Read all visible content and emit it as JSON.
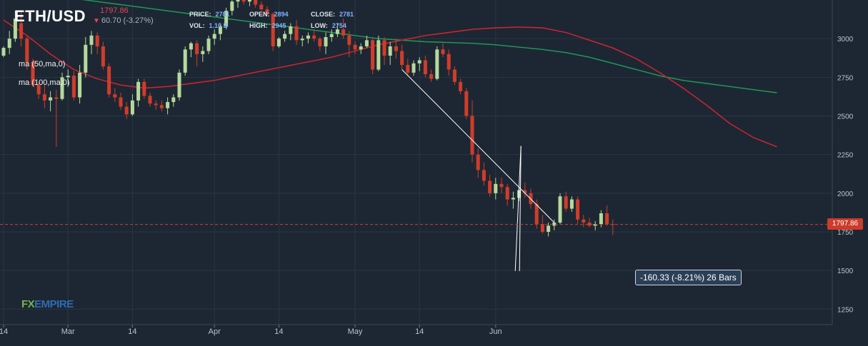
{
  "header": {
    "symbol": "ETH/USD",
    "price": "1797.86",
    "change": "60.70 (-3.27%)",
    "stats": [
      {
        "key": "PRICE:",
        "value": "2781"
      },
      {
        "key": "OPEN:",
        "value": "2894"
      },
      {
        "key": "CLOSE:",
        "value": "2781"
      },
      {
        "key": "VOL:",
        "value": "1.10 B"
      },
      {
        "key": "HIGH:",
        "value": "2945"
      },
      {
        "key": "LOW:",
        "value": "2754"
      }
    ]
  },
  "indicators": [
    "ma (50,ma,0)",
    "ma (100,ma,0)"
  ],
  "logo": {
    "part1": "FX",
    "part2": "EMPIRE"
  },
  "measure": {
    "label": "-160.33 (-8.21%) 26 Bars",
    "from_index": 68,
    "to_index": 94
  },
  "price_tag": "1797.86",
  "colors": {
    "background": "#1d2733",
    "up": "#b5d99c",
    "down": "#d13c2a",
    "ma50": "#d9242f",
    "ma100": "#1e9e5a",
    "current_price_line": "#c8412f",
    "grid": "#2a3644"
  },
  "chart_data": {
    "type": "candlestick",
    "ylim": [
      1150,
      3250
    ],
    "y_ticks": [
      1250,
      1500,
      1750,
      2000,
      2250,
      2500,
      2750,
      3000
    ],
    "x_ticks": [
      {
        "label": "14",
        "index": 0
      },
      {
        "label": "Mar",
        "index": 11
      },
      {
        "label": "14",
        "index": 22
      },
      {
        "label": "Apr",
        "index": 36
      },
      {
        "label": "14",
        "index": 47
      },
      {
        "label": "May",
        "index": 60
      },
      {
        "label": "14",
        "index": 71
      },
      {
        "label": "Jun",
        "index": 84
      }
    ],
    "current_price": 1797.86,
    "candles": [
      [
        2890,
        2950,
        2880,
        2940
      ],
      [
        2940,
        3050,
        2900,
        3000
      ],
      [
        3000,
        3180,
        2980,
        3130
      ],
      [
        3100,
        3180,
        2950,
        3000
      ],
      [
        3000,
        3020,
        2800,
        2850
      ],
      [
        2850,
        2870,
        2690,
        2700
      ],
      [
        2700,
        2720,
        2610,
        2640
      ],
      [
        2640,
        2700,
        2550,
        2600
      ],
      [
        2600,
        2660,
        2530,
        2620
      ],
      [
        2620,
        2670,
        2300,
        2610
      ],
      [
        2610,
        2780,
        2600,
        2750
      ],
      [
        2750,
        2800,
        2700,
        2760
      ],
      [
        2760,
        2790,
        2600,
        2620
      ],
      [
        2620,
        2830,
        2580,
        2780
      ],
      [
        2780,
        3010,
        2750,
        2960
      ],
      [
        2960,
        3050,
        2900,
        3020
      ],
      [
        3020,
        3040,
        2900,
        2950
      ],
      [
        2950,
        2980,
        2800,
        2820
      ],
      [
        2820,
        2840,
        2620,
        2640
      ],
      [
        2640,
        2680,
        2590,
        2620
      ],
      [
        2620,
        2650,
        2540,
        2560
      ],
      [
        2560,
        2590,
        2480,
        2510
      ],
      [
        2510,
        2640,
        2500,
        2600
      ],
      [
        2600,
        2740,
        2560,
        2720
      ],
      [
        2720,
        2740,
        2610,
        2630
      ],
      [
        2630,
        2650,
        2560,
        2580
      ],
      [
        2580,
        2600,
        2540,
        2570
      ],
      [
        2570,
        2600,
        2530,
        2550
      ],
      [
        2550,
        2620,
        2510,
        2590
      ],
      [
        2590,
        2640,
        2560,
        2620
      ],
      [
        2620,
        2800,
        2600,
        2780
      ],
      [
        2780,
        2950,
        2760,
        2930
      ],
      [
        2930,
        2980,
        2880,
        2970
      ],
      [
        2970,
        2990,
        2820,
        2900
      ],
      [
        2900,
        2950,
        2850,
        2920
      ],
      [
        2920,
        3020,
        2900,
        3000
      ],
      [
        3000,
        3060,
        2960,
        3030
      ],
      [
        3030,
        3100,
        2990,
        3080
      ],
      [
        3080,
        3200,
        3060,
        3180
      ],
      [
        3180,
        3260,
        3150,
        3240
      ],
      [
        3240,
        3280,
        3200,
        3260
      ],
      [
        3260,
        3270,
        3220,
        3240
      ],
      [
        3240,
        3280,
        3210,
        3250
      ],
      [
        3250,
        3270,
        3200,
        3220
      ],
      [
        3220,
        3240,
        3180,
        3190
      ],
      [
        3190,
        3210,
        3150,
        3160
      ],
      [
        3160,
        3170,
        2920,
        2950
      ],
      [
        2950,
        3010,
        2940,
        3000
      ],
      [
        3000,
        3050,
        2980,
        3030
      ],
      [
        3030,
        3100,
        2990,
        3080
      ],
      [
        3080,
        3120,
        2960,
        2990
      ],
      [
        2990,
        3020,
        2950,
        3000
      ],
      [
        3000,
        3040,
        2970,
        3020
      ],
      [
        3020,
        3060,
        2980,
        3000
      ],
      [
        3000,
        3010,
        2920,
        2950
      ],
      [
        2950,
        3040,
        2900,
        3010
      ],
      [
        3010,
        3060,
        2980,
        3030
      ],
      [
        3030,
        3100,
        3010,
        3060
      ],
      [
        3060,
        3130,
        3000,
        3020
      ],
      [
        3020,
        3050,
        2880,
        2960
      ],
      [
        2960,
        2980,
        2900,
        2930
      ],
      [
        2930,
        2970,
        2900,
        2950
      ],
      [
        2950,
        3020,
        2940,
        2990
      ],
      [
        2990,
        3000,
        2770,
        2800
      ],
      [
        2800,
        3020,
        2790,
        2990
      ],
      [
        2990,
        3010,
        2830,
        2890
      ],
      [
        2890,
        2980,
        2830,
        2950
      ],
      [
        2950,
        3000,
        2870,
        2920
      ],
      [
        2920,
        2960,
        2800,
        2830
      ],
      [
        2830,
        2870,
        2760,
        2780
      ],
      [
        2780,
        2860,
        2760,
        2840
      ],
      [
        2840,
        2880,
        2790,
        2860
      ],
      [
        2860,
        2890,
        2750,
        2770
      ],
      [
        2770,
        2800,
        2720,
        2740
      ],
      [
        2740,
        2950,
        2730,
        2930
      ],
      [
        2930,
        2970,
        2880,
        2900
      ],
      [
        2900,
        2930,
        2760,
        2800
      ],
      [
        2800,
        2820,
        2700,
        2720
      ],
      [
        2720,
        2740,
        2640,
        2660
      ],
      [
        2660,
        2680,
        2480,
        2500
      ],
      [
        2500,
        2600,
        2200,
        2250
      ],
      [
        2250,
        2290,
        2100,
        2150
      ],
      [
        2150,
        2200,
        2050,
        2080
      ],
      [
        2080,
        2120,
        1980,
        2000
      ],
      [
        2000,
        2100,
        1960,
        2060
      ],
      [
        2060,
        2100,
        2000,
        2040
      ],
      [
        2040,
        2060,
        1920,
        1960
      ],
      [
        1960,
        2010,
        1900,
        1970
      ],
      [
        1970,
        2040,
        1950,
        2020
      ],
      [
        2020,
        2070,
        1970,
        2000
      ],
      [
        2000,
        2030,
        1900,
        1930
      ],
      [
        1930,
        1960,
        1770,
        1800
      ],
      [
        1800,
        1860,
        1740,
        1750
      ],
      [
        1750,
        1810,
        1720,
        1790
      ],
      [
        1790,
        1830,
        1760,
        1810
      ],
      [
        1810,
        2000,
        1800,
        1980
      ],
      [
        1980,
        2010,
        1880,
        1900
      ],
      [
        1900,
        1980,
        1880,
        1960
      ],
      [
        1960,
        1980,
        1800,
        1830
      ],
      [
        1830,
        1860,
        1780,
        1810
      ],
      [
        1810,
        1840,
        1780,
        1790
      ],
      [
        1790,
        1820,
        1760,
        1800
      ],
      [
        1800,
        1890,
        1780,
        1870
      ],
      [
        1870,
        1920,
        1790,
        1800
      ],
      [
        1800,
        1830,
        1730,
        1797.86
      ]
    ],
    "ma50": [
      [
        0,
        3120
      ],
      [
        4,
        3020
      ],
      [
        8,
        2900
      ],
      [
        12,
        2800
      ],
      [
        16,
        2740
      ],
      [
        20,
        2700
      ],
      [
        24,
        2680
      ],
      [
        28,
        2690
      ],
      [
        32,
        2710
      ],
      [
        36,
        2730
      ],
      [
        40,
        2760
      ],
      [
        44,
        2790
      ],
      [
        48,
        2820
      ],
      [
        52,
        2850
      ],
      [
        56,
        2880
      ],
      [
        60,
        2920
      ],
      [
        64,
        2960
      ],
      [
        68,
        2990
      ],
      [
        72,
        3020
      ],
      [
        76,
        3040
      ],
      [
        80,
        3060
      ],
      [
        84,
        3070
      ],
      [
        88,
        3075
      ],
      [
        92,
        3070
      ],
      [
        96,
        3040
      ],
      [
        100,
        2990
      ],
      [
        104,
        2940
      ],
      [
        108,
        2870
      ],
      [
        112,
        2780
      ],
      [
        116,
        2680
      ],
      [
        120,
        2570
      ],
      [
        124,
        2450
      ],
      [
        128,
        2360
      ],
      [
        132,
        2300
      ]
    ],
    "ma100": [
      [
        0,
        3320
      ],
      [
        4,
        3300
      ],
      [
        8,
        3280
      ],
      [
        12,
        3260
      ],
      [
        16,
        3240
      ],
      [
        20,
        3220
      ],
      [
        24,
        3200
      ],
      [
        28,
        3180
      ],
      [
        32,
        3160
      ],
      [
        36,
        3140
      ],
      [
        40,
        3120
      ],
      [
        44,
        3100
      ],
      [
        48,
        3080
      ],
      [
        52,
        3060
      ],
      [
        56,
        3040
      ],
      [
        60,
        3020
      ],
      [
        64,
        3000
      ],
      [
        68,
        2990
      ],
      [
        72,
        2980
      ],
      [
        76,
        2975
      ],
      [
        80,
        2970
      ],
      [
        84,
        2960
      ],
      [
        88,
        2945
      ],
      [
        92,
        2930
      ],
      [
        96,
        2910
      ],
      [
        100,
        2880
      ],
      [
        104,
        2840
      ],
      [
        108,
        2800
      ],
      [
        112,
        2760
      ],
      [
        116,
        2730
      ],
      [
        120,
        2710
      ],
      [
        124,
        2690
      ],
      [
        128,
        2670
      ],
      [
        132,
        2650
      ]
    ]
  }
}
